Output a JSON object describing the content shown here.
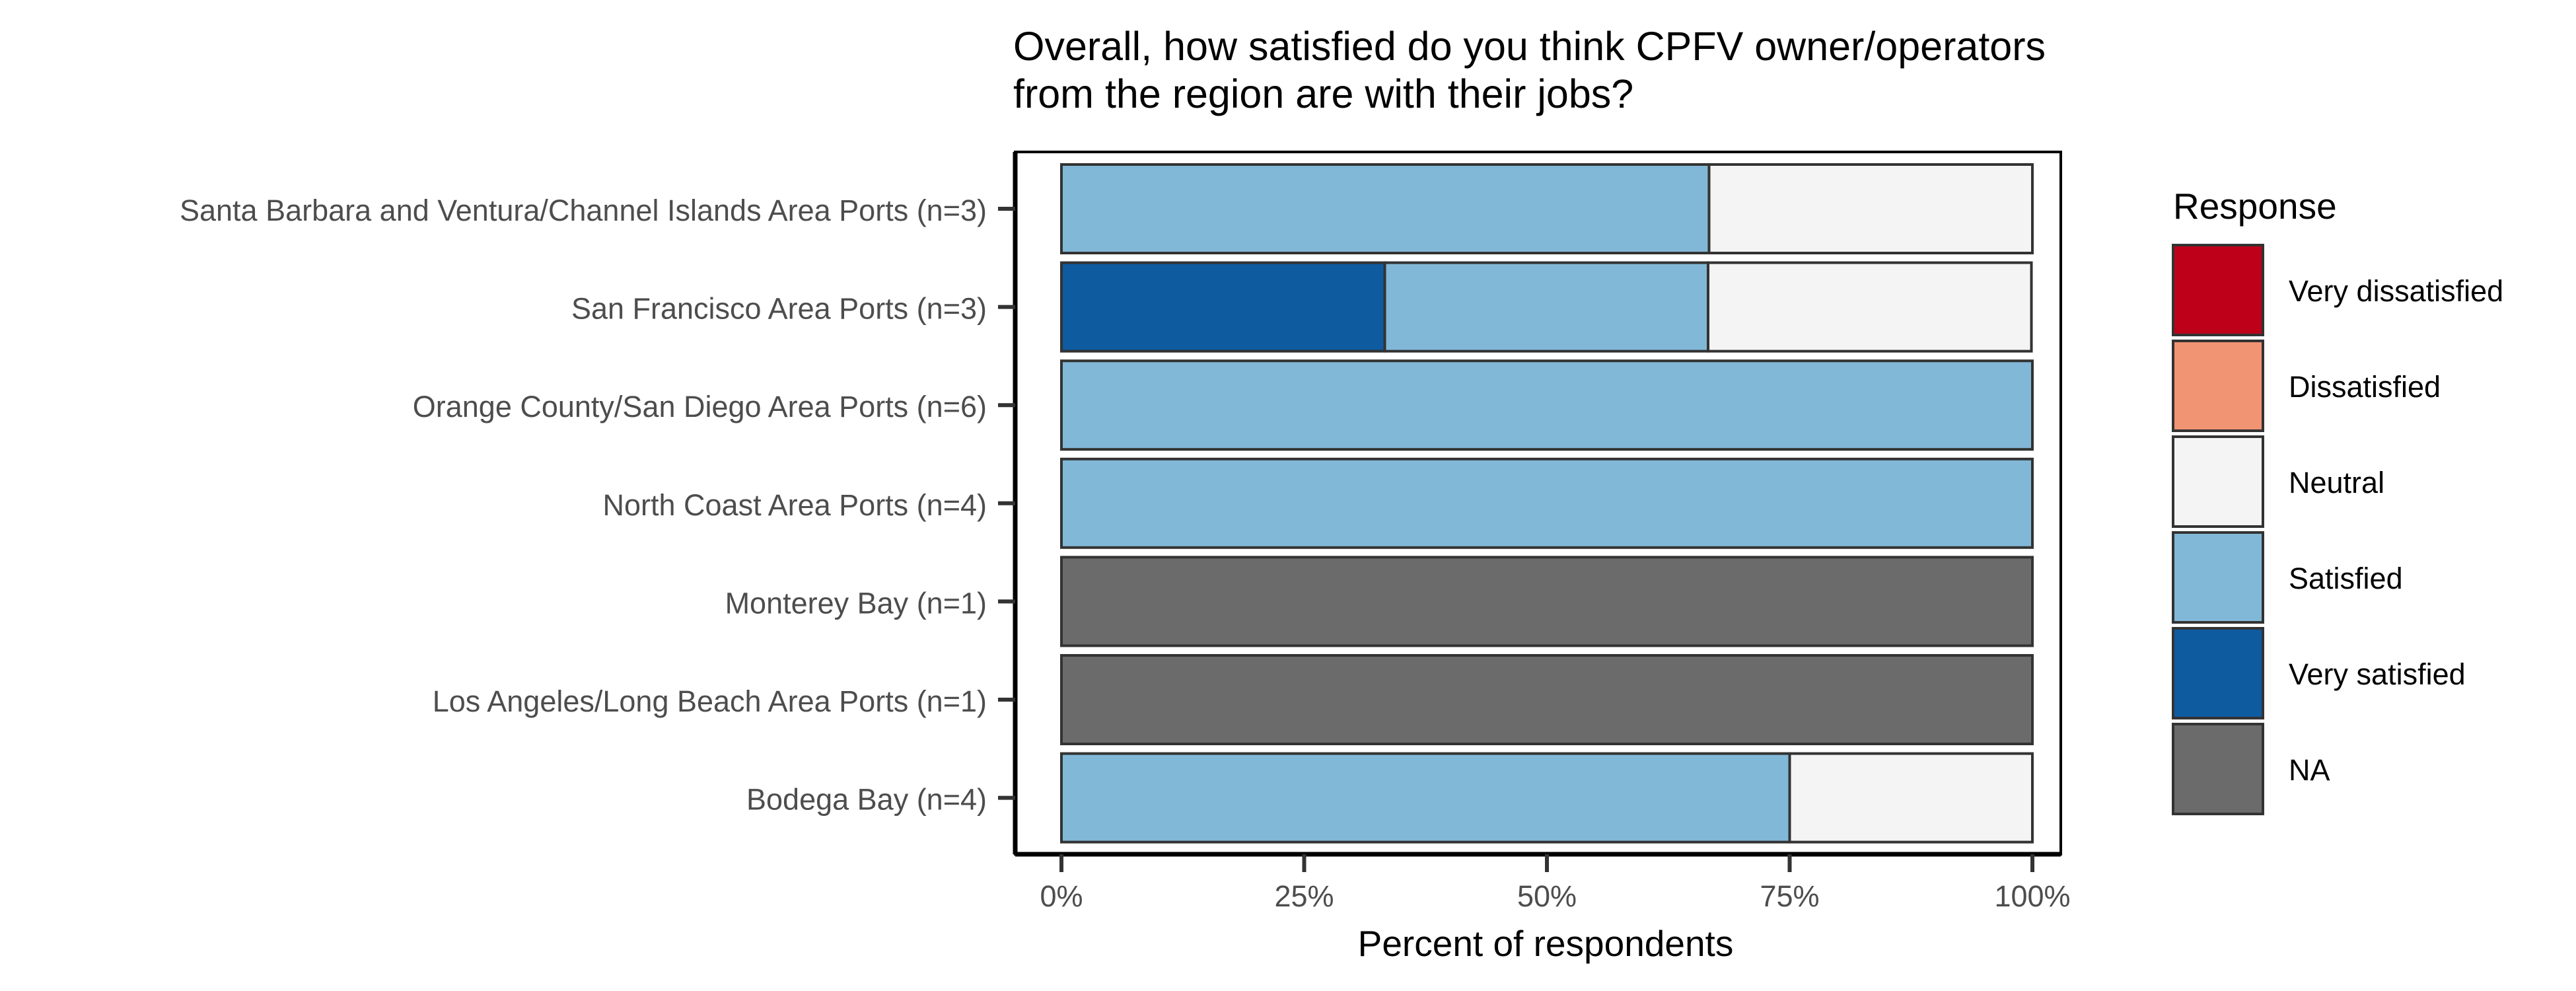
{
  "chart_data": {
    "type": "bar",
    "orientation": "horizontal",
    "stacked": true,
    "title_lines": [
      "Overall, how satisfied do you think CPFV owner/operators",
      "from the region are with their jobs?"
    ],
    "xlabel": "Percent of respondents",
    "ylabel": "",
    "xlim": [
      0,
      100
    ],
    "x_ticks": [
      "0%",
      "25%",
      "50%",
      "75%",
      "100%"
    ],
    "x_tick_values": [
      0,
      25,
      50,
      75,
      100
    ],
    "categories": [
      "Santa Barbara and Ventura/Channel Islands Area Ports (n=3)",
      "San Francisco Area Ports (n=3)",
      "Orange County/San Diego Area Ports (n=6)",
      "North Coast Area Ports (n=4)",
      "Monterey Bay (n=1)",
      "Los Angeles/Long Beach Area Ports (n=1)",
      "Bodega Bay (n=4)"
    ],
    "series": [
      {
        "name": "Very satisfied",
        "color": "#0E5BA0",
        "values": [
          0,
          33.3,
          0,
          0,
          0,
          0,
          0
        ]
      },
      {
        "name": "Satisfied",
        "color": "#82B8D7",
        "values": [
          66.7,
          33.3,
          100,
          100,
          0,
          0,
          75
        ]
      },
      {
        "name": "Neutral",
        "color": "#F4F4F4",
        "values": [
          33.3,
          33.3,
          0,
          0,
          0,
          0,
          25
        ]
      },
      {
        "name": "NA",
        "color": "#6B6B6B",
        "values": [
          0,
          0,
          0,
          0,
          100,
          100,
          0
        ]
      }
    ],
    "legend": {
      "title": "Response",
      "position": "right",
      "entries": [
        {
          "name": "Very dissatisfied",
          "color": "#BE0119"
        },
        {
          "name": "Dissatisfied",
          "color": "#F19474"
        },
        {
          "name": "Neutral",
          "color": "#F4F4F4"
        },
        {
          "name": "Satisfied",
          "color": "#82B8D7"
        },
        {
          "name": "Very satisfied",
          "color": "#0E5BA0"
        },
        {
          "name": "NA",
          "color": "#6B6B6B"
        }
      ]
    },
    "grid": false
  }
}
